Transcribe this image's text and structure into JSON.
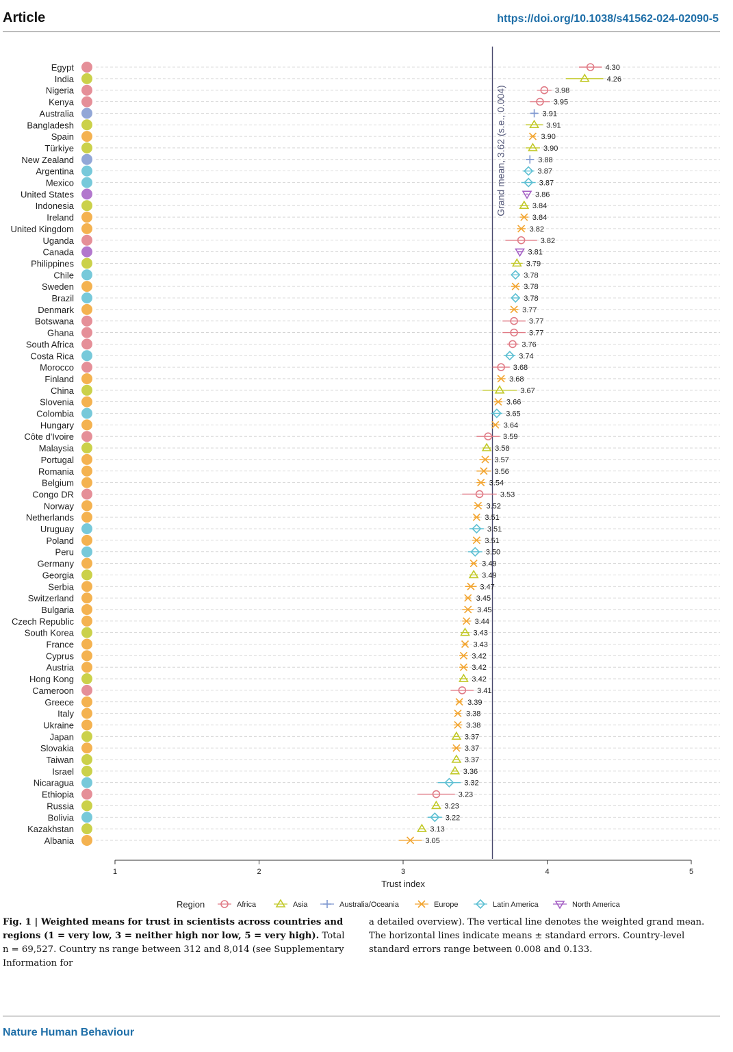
{
  "header": {
    "section": "Article",
    "doi": "https://doi.org/10.1038/s41562-024-02090-5"
  },
  "chart_data": {
    "type": "scatter",
    "xlabel": "Trust index",
    "xlim": [
      1,
      5
    ],
    "xticks": [
      "1",
      "2",
      "3",
      "4",
      "5"
    ],
    "grand_mean": 3.62,
    "grand_mean_label": "Grand mean, 3.62 (s.e., 0.004)",
    "legend_title": "Region",
    "legend_position": "bottom",
    "regions": [
      {
        "name": "Africa",
        "color": "#e07b86",
        "marker": "circle"
      },
      {
        "name": "Asia",
        "color": "#c2c92a",
        "marker": "triangle-up"
      },
      {
        "name": "Australia/Oceania",
        "color": "#7f98d0",
        "marker": "plus"
      },
      {
        "name": "Europe",
        "color": "#f2a531",
        "marker": "cross"
      },
      {
        "name": "Latin America",
        "color": "#5fc0d3",
        "marker": "diamond"
      },
      {
        "name": "North America",
        "color": "#a45fc4",
        "marker": "triangle-down"
      }
    ],
    "countries": [
      {
        "name": "Egypt",
        "region": "Africa",
        "value": 4.3,
        "label": "4.30",
        "se": 0.08
      },
      {
        "name": "India",
        "region": "Asia",
        "value": 4.26,
        "label": "4.26",
        "se": 0.13
      },
      {
        "name": "Nigeria",
        "region": "Africa",
        "value": 3.98,
        "label": "3.98",
        "se": 0.05
      },
      {
        "name": "Kenya",
        "region": "Africa",
        "value": 3.95,
        "label": "3.95",
        "se": 0.07
      },
      {
        "name": "Australia",
        "region": "Australia/Oceania",
        "value": 3.91,
        "label": "3.91",
        "se": 0.02
      },
      {
        "name": "Bangladesh",
        "region": "Asia",
        "value": 3.91,
        "label": "3.91",
        "se": 0.06
      },
      {
        "name": "Spain",
        "region": "Europe",
        "value": 3.9,
        "label": "3.90",
        "se": 0.02
      },
      {
        "name": "Türkiye",
        "region": "Asia",
        "value": 3.9,
        "label": "3.90",
        "se": 0.05
      },
      {
        "name": "New Zealand",
        "region": "Australia/Oceania",
        "value": 3.88,
        "label": "3.88",
        "se": 0.02
      },
      {
        "name": "Argentina",
        "region": "Latin America",
        "value": 3.87,
        "label": "3.87",
        "se": 0.04
      },
      {
        "name": "Mexico",
        "region": "Latin America",
        "value": 3.87,
        "label": "3.87",
        "se": 0.05
      },
      {
        "name": "United States",
        "region": "North America",
        "value": 3.86,
        "label": "3.86",
        "se": 0.01
      },
      {
        "name": "Indonesia",
        "region": "Asia",
        "value": 3.84,
        "label": "3.84",
        "se": 0.03
      },
      {
        "name": "Ireland",
        "region": "Europe",
        "value": 3.84,
        "label": "3.84",
        "se": 0.03
      },
      {
        "name": "United Kingdom",
        "region": "Europe",
        "value": 3.82,
        "label": "3.82",
        "se": 0.03
      },
      {
        "name": "Uganda",
        "region": "Africa",
        "value": 3.82,
        "label": "3.82",
        "se": 0.11
      },
      {
        "name": "Canada",
        "region": "North America",
        "value": 3.81,
        "label": "3.81",
        "se": 0.02
      },
      {
        "name": "Philippines",
        "region": "Asia",
        "value": 3.79,
        "label": "3.79",
        "se": 0.04
      },
      {
        "name": "Chile",
        "region": "Latin America",
        "value": 3.78,
        "label": "3.78",
        "se": 0.02
      },
      {
        "name": "Sweden",
        "region": "Europe",
        "value": 3.78,
        "label": "3.78",
        "se": 0.03
      },
      {
        "name": "Brazil",
        "region": "Latin America",
        "value": 3.78,
        "label": "3.78",
        "se": 0.03
      },
      {
        "name": "Denmark",
        "region": "Europe",
        "value": 3.77,
        "label": "3.77",
        "se": 0.03
      },
      {
        "name": "Botswana",
        "region": "Africa",
        "value": 3.77,
        "label": "3.77",
        "se": 0.08
      },
      {
        "name": "Ghana",
        "region": "Africa",
        "value": 3.77,
        "label": "3.77",
        "se": 0.08
      },
      {
        "name": "South Africa",
        "region": "Africa",
        "value": 3.76,
        "label": "3.76",
        "se": 0.04
      },
      {
        "name": "Costa Rica",
        "region": "Latin America",
        "value": 3.74,
        "label": "3.74",
        "se": 0.04
      },
      {
        "name": "Morocco",
        "region": "Africa",
        "value": 3.68,
        "label": "3.68",
        "se": 0.06
      },
      {
        "name": "Finland",
        "region": "Europe",
        "value": 3.68,
        "label": "3.68",
        "se": 0.03
      },
      {
        "name": "China",
        "region": "Asia",
        "value": 3.67,
        "label": "3.67",
        "se": 0.12
      },
      {
        "name": "Slovenia",
        "region": "Europe",
        "value": 3.66,
        "label": "3.66",
        "se": 0.03
      },
      {
        "name": "Colombia",
        "region": "Latin America",
        "value": 3.65,
        "label": "3.65",
        "se": 0.04
      },
      {
        "name": "Hungary",
        "region": "Europe",
        "value": 3.64,
        "label": "3.64",
        "se": 0.03
      },
      {
        "name": "Côte d'Ivoire",
        "region": "Africa",
        "value": 3.59,
        "label": "3.59",
        "se": 0.08
      },
      {
        "name": "Malaysia",
        "region": "Asia",
        "value": 3.58,
        "label": "3.58",
        "se": 0.03
      },
      {
        "name": "Portugal",
        "region": "Europe",
        "value": 3.57,
        "label": "3.57",
        "se": 0.04
      },
      {
        "name": "Romania",
        "region": "Europe",
        "value": 3.56,
        "label": "3.56",
        "se": 0.05
      },
      {
        "name": "Belgium",
        "region": "Europe",
        "value": 3.54,
        "label": "3.54",
        "se": 0.03
      },
      {
        "name": "Congo DR",
        "region": "Africa",
        "value": 3.53,
        "label": "3.53",
        "se": 0.12
      },
      {
        "name": "Norway",
        "region": "Europe",
        "value": 3.52,
        "label": "3.52",
        "se": 0.03
      },
      {
        "name": "Netherlands",
        "region": "Europe",
        "value": 3.51,
        "label": "3.51",
        "se": 0.02
      },
      {
        "name": "Uruguay",
        "region": "Latin America",
        "value": 3.51,
        "label": "3.51",
        "se": 0.05
      },
      {
        "name": "Poland",
        "region": "Europe",
        "value": 3.51,
        "label": "3.51",
        "se": 0.03
      },
      {
        "name": "Peru",
        "region": "Latin America",
        "value": 3.5,
        "label": "3.50",
        "se": 0.05
      },
      {
        "name": "Germany",
        "region": "Europe",
        "value": 3.49,
        "label": "3.49",
        "se": 0.02
      },
      {
        "name": "Georgia",
        "region": "Asia",
        "value": 3.49,
        "label": "3.49",
        "se": 0.03
      },
      {
        "name": "Serbia",
        "region": "Europe",
        "value": 3.47,
        "label": "3.47",
        "se": 0.04
      },
      {
        "name": "Switzerland",
        "region": "Europe",
        "value": 3.45,
        "label": "3.45",
        "se": 0.02
      },
      {
        "name": "Bulgaria",
        "region": "Europe",
        "value": 3.45,
        "label": "3.45",
        "se": 0.04
      },
      {
        "name": "Czech Republic",
        "region": "Europe",
        "value": 3.44,
        "label": "3.44",
        "se": 0.03
      },
      {
        "name": "South Korea",
        "region": "Asia",
        "value": 3.43,
        "label": "3.43",
        "se": 0.03
      },
      {
        "name": "France",
        "region": "Europe",
        "value": 3.43,
        "label": "3.43",
        "se": 0.02
      },
      {
        "name": "Cyprus",
        "region": "Europe",
        "value": 3.42,
        "label": "3.42",
        "se": 0.03
      },
      {
        "name": "Austria",
        "region": "Europe",
        "value": 3.42,
        "label": "3.42",
        "se": 0.03
      },
      {
        "name": "Hong Kong",
        "region": "Asia",
        "value": 3.42,
        "label": "3.42",
        "se": 0.03
      },
      {
        "name": "Cameroon",
        "region": "Africa",
        "value": 3.41,
        "label": "3.41",
        "se": 0.08
      },
      {
        "name": "Greece",
        "region": "Europe",
        "value": 3.39,
        "label": "3.39",
        "se": 0.02
      },
      {
        "name": "Italy",
        "region": "Europe",
        "value": 3.38,
        "label": "3.38",
        "se": 0.02
      },
      {
        "name": "Ukraine",
        "region": "Europe",
        "value": 3.38,
        "label": "3.38",
        "se": 0.03
      },
      {
        "name": "Japan",
        "region": "Asia",
        "value": 3.37,
        "label": "3.37",
        "se": 0.02
      },
      {
        "name": "Slovakia",
        "region": "Europe",
        "value": 3.37,
        "label": "3.37",
        "se": 0.03
      },
      {
        "name": "Taiwan",
        "region": "Asia",
        "value": 3.37,
        "label": "3.37",
        "se": 0.02
      },
      {
        "name": "Israel",
        "region": "Asia",
        "value": 3.36,
        "label": "3.36",
        "se": 0.02
      },
      {
        "name": "Nicaragua",
        "region": "Latin America",
        "value": 3.32,
        "label": "3.32",
        "se": 0.08
      },
      {
        "name": "Ethiopia",
        "region": "Africa",
        "value": 3.23,
        "label": "3.23",
        "se": 0.13
      },
      {
        "name": "Russia",
        "region": "Asia",
        "value": 3.23,
        "label": "3.23",
        "se": 0.02
      },
      {
        "name": "Bolivia",
        "region": "Latin America",
        "value": 3.22,
        "label": "3.22",
        "se": 0.05
      },
      {
        "name": "Kazakhstan",
        "region": "Asia",
        "value": 3.13,
        "label": "3.13",
        "se": 0.02
      },
      {
        "name": "Albania",
        "region": "Europe",
        "value": 3.05,
        "label": "3.05",
        "se": 0.08
      }
    ]
  },
  "caption": {
    "fig_label": "Fig. 1 | ",
    "bold_text": "Weighted means for trust in scientists across countries and regions (1 = very low, 3 = neither high nor low, 5 = very high).",
    "left_rest": " Total n = 69,527. Country ns range between 312 and 8,014 (see Supplementary Information for",
    "right_text": "a detailed overview). The vertical line denotes the weighted grand mean. The horizontal lines indicate means ± standard errors. Country-level standard errors range between 0.008 and 0.133."
  },
  "footer": {
    "journal": "Nature Human Behaviour"
  }
}
